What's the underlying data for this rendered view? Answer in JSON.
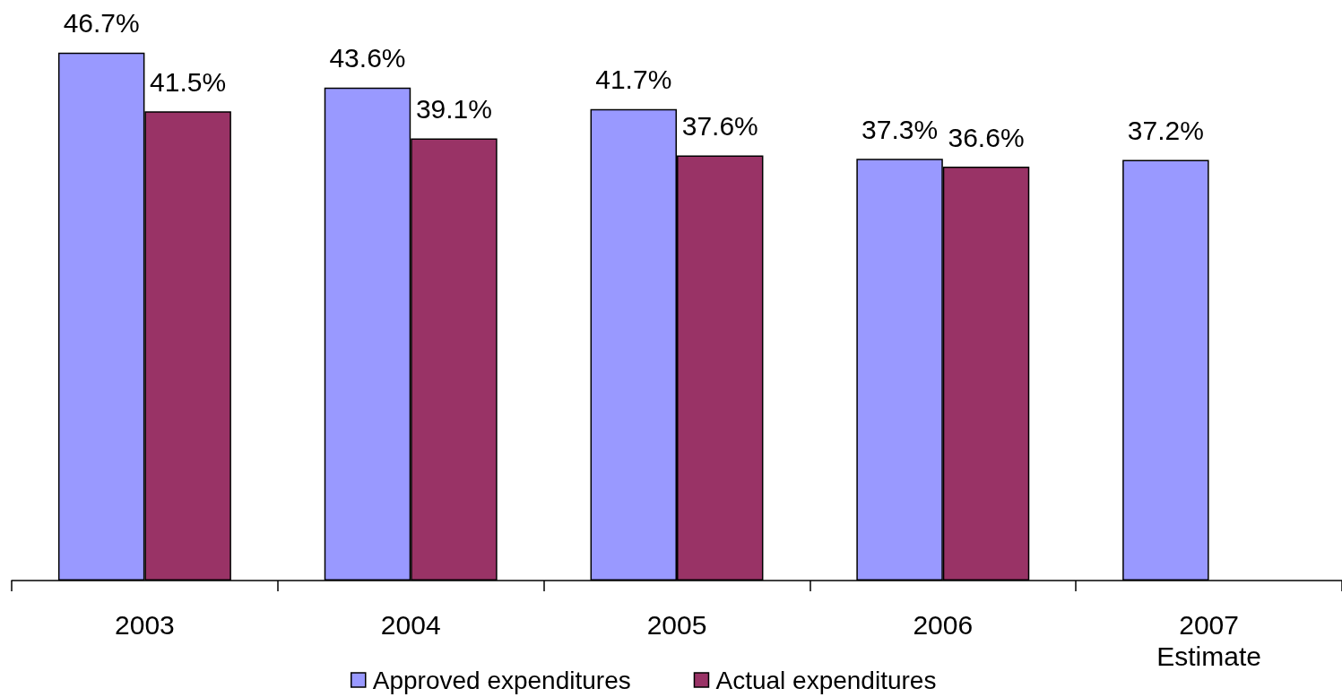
{
  "chart_data": {
    "type": "bar",
    "categories": [
      "2003",
      "2004",
      "2005",
      "2006",
      "2007\nEstimate"
    ],
    "series": [
      {
        "name": "Approved expenditures",
        "color": "#9999ff",
        "values": [
          46.7,
          43.6,
          41.7,
          37.3,
          37.2
        ],
        "value_labels": [
          "46.7%",
          "43.6%",
          "41.7%",
          "37.3%",
          "37.2%"
        ]
      },
      {
        "name": "Actual expenditures",
        "color": "#993366",
        "values": [
          41.5,
          39.1,
          37.6,
          36.6,
          null
        ],
        "value_labels": [
          "41.5%",
          "39.1%",
          "37.6%",
          "36.6%",
          null
        ]
      }
    ],
    "legend": "bottom",
    "grid": false,
    "tick_labels": "x"
  }
}
